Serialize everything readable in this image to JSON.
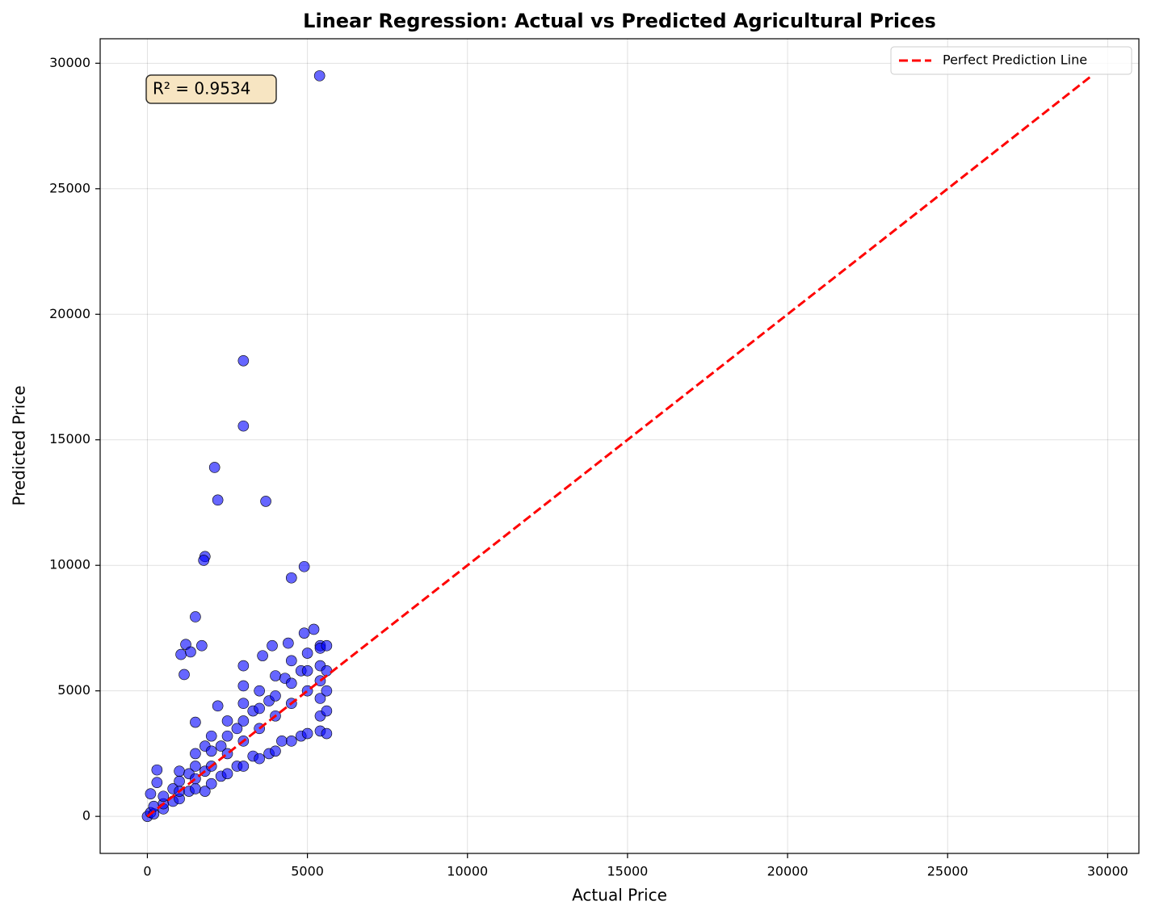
{
  "chart_data": {
    "type": "scatter",
    "title": "Linear Regression: Actual vs Predicted Agricultural Prices",
    "x_label": "Actual Price",
    "y_label": "Predicted Price",
    "annotation": "R² = 0.9534",
    "color": "#0000ff",
    "edge_color": "#000000",
    "x": [
      5380,
      3000,
      3000,
      2100,
      2200,
      3700,
      1800,
      1760,
      4900,
      4500,
      1500,
      1700,
      1200,
      1050,
      1350,
      1150,
      3000,
      4900,
      5200,
      3600,
      3900,
      4400,
      5400,
      2200,
      3000,
      1500,
      300,
      300,
      100,
      0,
      100,
      200,
      200,
      500,
      500,
      500,
      800,
      800,
      1000,
      1000,
      1000,
      1000,
      1300,
      1300,
      1500,
      1500,
      1500,
      1500,
      1800,
      1800,
      1800,
      2000,
      2000,
      2000,
      2000,
      2300,
      2300,
      2500,
      2500,
      2500,
      2500,
      2800,
      2800,
      3000,
      3000,
      3000,
      3000,
      3300,
      3300,
      3500,
      3500,
      3500,
      3500,
      3800,
      3800,
      4000,
      4000,
      4000,
      4000,
      4200,
      4300,
      4500,
      4500,
      4500,
      4500,
      4800,
      4800,
      5000,
      5000,
      5000,
      5000,
      5400,
      5400,
      5400,
      5400,
      5400,
      5400,
      5600,
      5600,
      5600,
      5600,
      5600
    ],
    "y": [
      29500,
      18150,
      15550,
      13900,
      12600,
      12550,
      10350,
      10200,
      9950,
      9500,
      7950,
      6800,
      6850,
      6450,
      6550,
      5650,
      6000,
      7300,
      7450,
      6400,
      6800,
      6900,
      6800,
      4400,
      5200,
      3750,
      1850,
      1350,
      900,
      0,
      150,
      100,
      400,
      300,
      500,
      800,
      600,
      1100,
      700,
      1000,
      1400,
      1800,
      1000,
      1700,
      1100,
      1500,
      2000,
      2500,
      1000,
      1800,
      2800,
      1300,
      2000,
      2600,
      3200,
      1600,
      2800,
      1700,
      2500,
      3200,
      3800,
      2000,
      3500,
      2000,
      3000,
      3800,
      4500,
      2400,
      4200,
      2300,
      3500,
      4300,
      5000,
      2500,
      4600,
      2600,
      4000,
      4800,
      5600,
      3000,
      5500,
      3000,
      4500,
      5300,
      6200,
      3200,
      5800,
      3300,
      5000,
      5800,
      6500,
      3400,
      4000,
      4700,
      5400,
      6000,
      6700,
      3300,
      4200,
      5000,
      5800,
      6800
    ],
    "reference_line": {
      "name": "Perfect Prediction Line",
      "color": "#ff0000",
      "x": [
        0,
        29500
      ],
      "y": [
        0,
        29500
      ]
    },
    "xlim": [
      -1475,
      30975
    ],
    "ylim": [
      -1475,
      30975
    ],
    "xticks": [
      0,
      5000,
      10000,
      15000,
      20000,
      25000,
      30000
    ],
    "yticks": [
      0,
      5000,
      10000,
      15000,
      20000,
      25000,
      30000
    ],
    "grid": true,
    "legend": "upper right"
  }
}
